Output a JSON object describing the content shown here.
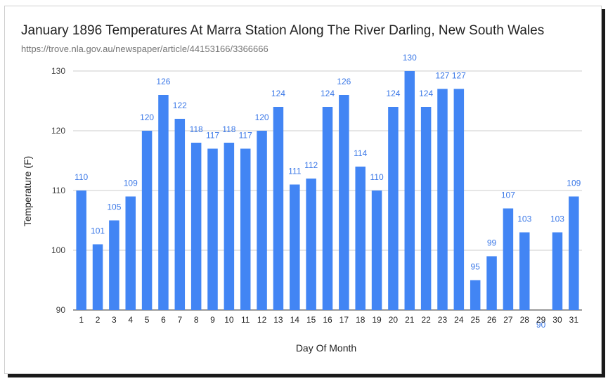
{
  "chart_data": {
    "type": "bar",
    "title": "January 1896 Temperatures At Marra Station Along The River Darling, New South Wales",
    "subtitle": "https://trove.nla.gov.au/newspaper/article/44153166/3366666",
    "xlabel": "Day Of Month",
    "ylabel": "Temperature (F)",
    "ylim": [
      90,
      130
    ],
    "yticks": [
      90,
      100,
      110,
      120,
      130
    ],
    "grid": true,
    "categories": [
      "1",
      "2",
      "3",
      "4",
      "5",
      "6",
      "7",
      "8",
      "9",
      "10",
      "11",
      "12",
      "13",
      "14",
      "15",
      "16",
      "17",
      "18",
      "19",
      "20",
      "21",
      "22",
      "23",
      "24",
      "25",
      "26",
      "27",
      "28",
      "29",
      "30",
      "31"
    ],
    "values": [
      110,
      101,
      105,
      109,
      120,
      126,
      122,
      118,
      117,
      118,
      117,
      120,
      124,
      111,
      112,
      124,
      126,
      114,
      110,
      124,
      130,
      124,
      127,
      127,
      95,
      99,
      107,
      103,
      90,
      103,
      109
    ],
    "bar_color": "#4285f4",
    "label_color": "#3b78e7"
  }
}
